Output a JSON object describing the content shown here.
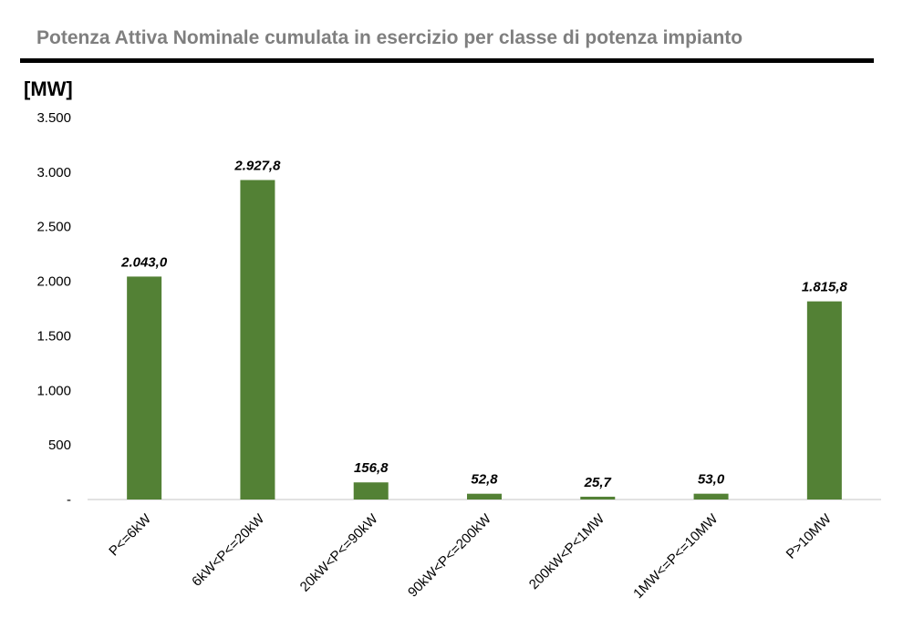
{
  "header": {
    "title": "Potenza Attiva Nominale cumulata in esercizio per classe di potenza impianto",
    "unit_label": "[MW]"
  },
  "colors": {
    "bar": "#538135",
    "title": "#7f7f7f",
    "rule": "#000000",
    "axis": "#d9d9d9"
  },
  "chart_data": {
    "type": "bar",
    "title": "Potenza Attiva Nominale cumulata in esercizio per classe di potenza impianto",
    "ylabel": "[MW]",
    "xlabel": "",
    "ylim": [
      0,
      3500
    ],
    "grid": false,
    "legend": "none",
    "y_ticks": [
      {
        "value": 0,
        "label": "-"
      },
      {
        "value": 500,
        "label": "500"
      },
      {
        "value": 1000,
        "label": "1.000"
      },
      {
        "value": 1500,
        "label": "1.500"
      },
      {
        "value": 2000,
        "label": "2.000"
      },
      {
        "value": 2500,
        "label": "2.500"
      },
      {
        "value": 3000,
        "label": "3.000"
      },
      {
        "value": 3500,
        "label": "3.500"
      }
    ],
    "categories": [
      "P<=6kW",
      "6kW<P<=20kW",
      "20kW<P<=90kW",
      "90kW<P<=200kW",
      "200kW<P<1MW",
      "1MW<=P<=10MW",
      "P>10MW"
    ],
    "values": [
      2043.0,
      2927.8,
      156.8,
      52.8,
      25.7,
      53.0,
      1815.8
    ],
    "data_labels": [
      "2.043,0",
      "2.927,8",
      "156,8",
      "52,8",
      "25,7",
      "53,0",
      "1.815,8"
    ]
  }
}
